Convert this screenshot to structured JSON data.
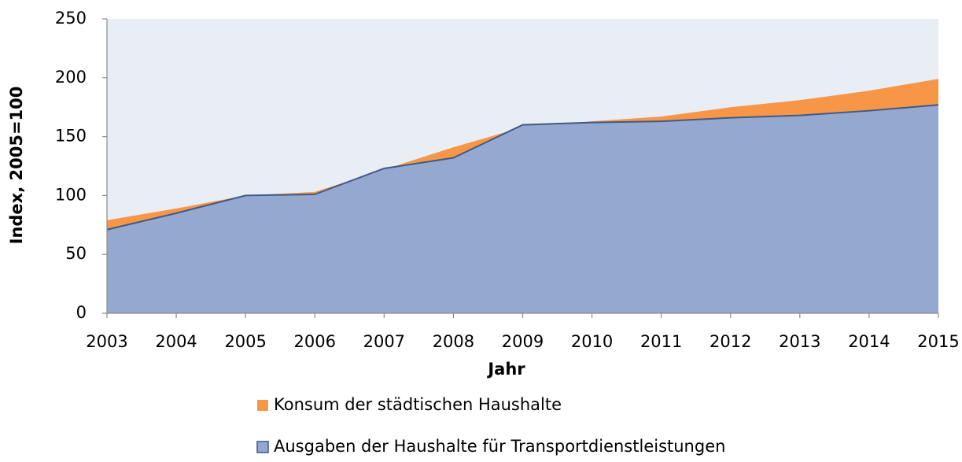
{
  "chart_data": {
    "type": "area",
    "x": [
      2003,
      2004,
      2005,
      2006,
      2007,
      2008,
      2009,
      2010,
      2011,
      2012,
      2013,
      2014,
      2015
    ],
    "xlim": [
      2003,
      2015
    ],
    "xticks": [
      2003,
      2004,
      2005,
      2006,
      2007,
      2008,
      2009,
      2010,
      2011,
      2012,
      2013,
      2014,
      2015
    ],
    "ylim": [
      0,
      250
    ],
    "yticks": [
      0,
      50,
      100,
      150,
      200,
      250
    ],
    "x_label": "Jahr",
    "y_label": "Index, 2005=100",
    "background": "#e9edf4",
    "series": [
      {
        "name": "Konsum der städtischen Haushalte",
        "color": "#f79646",
        "values": [
          79,
          89,
          100,
          103,
          122,
          141,
          158,
          163,
          167,
          175,
          181,
          189,
          199
        ]
      },
      {
        "name": "Ausgaben der Haushalte für Transportdienstleistungen",
        "color": "#95a9d0",
        "outline": "#3e5a86",
        "values": [
          71,
          85,
          100,
          101,
          123,
          132,
          160,
          162,
          163,
          166,
          168,
          172,
          177
        ]
      }
    ]
  }
}
